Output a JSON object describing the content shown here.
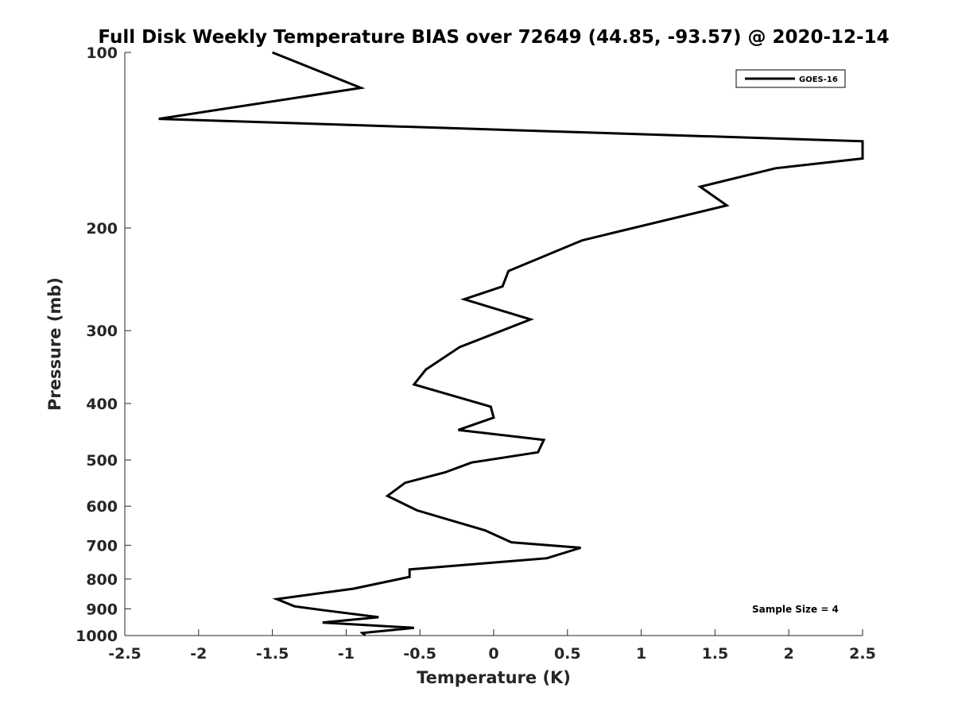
{
  "chart_data": {
    "type": "line",
    "title": "Full Disk Weekly Temperature BIAS over 72649 (44.85, -93.57) @ 2020-12-14",
    "xlabel": "Temperature (K)",
    "ylabel": "Pressure (mb)",
    "xlim": [
      -2.5,
      2.5
    ],
    "ylim": [
      100,
      1000
    ],
    "y_scale": "log",
    "y_reversed": true,
    "xticks": [
      -2.5,
      -2,
      -1.5,
      -1,
      -0.5,
      0,
      0.5,
      1,
      1.5,
      2,
      2.5
    ],
    "xtick_labels": [
      "-2.5",
      "-2",
      "-1.5",
      "-1",
      "-0.5",
      "0",
      "0.5",
      "1",
      "1.5",
      "2",
      "2.5"
    ],
    "yticks": [
      100,
      200,
      300,
      400,
      500,
      600,
      700,
      800,
      900,
      1000
    ],
    "ytick_labels": [
      "100",
      "200",
      "300",
      "400",
      "500",
      "600",
      "700",
      "800",
      "900",
      "1000"
    ],
    "grid": false,
    "legend_position": "top-right",
    "annotation": "Sample Size = 4",
    "series": [
      {
        "name": "GOES-16",
        "color": "#000000",
        "x": [
          -1.5,
          -0.9,
          -2.27,
          2.5,
          2.5,
          1.91,
          1.4,
          1.58,
          0.6,
          0.1,
          0.06,
          -0.2,
          0.25,
          -0.23,
          -0.46,
          -0.54,
          -0.02,
          0.0,
          -0.24,
          0.34,
          0.3,
          -0.15,
          -0.33,
          -0.6,
          -0.72,
          -0.52,
          -0.06,
          0.12,
          0.59,
          0.36,
          -0.57,
          -0.57,
          -0.95,
          -1.47,
          -1.35,
          -1.15,
          -0.78,
          -1.16,
          -0.54,
          -0.89,
          -0.87
        ],
        "y": [
          100,
          115,
          130,
          142,
          152,
          158,
          170,
          183,
          210,
          237,
          252,
          265,
          287,
          320,
          350,
          371,
          405,
          423,
          444,
          462,
          485,
          505,
          525,
          547,
          576,
          610,
          660,
          692,
          707,
          737,
          770,
          793,
          831,
          866,
          891,
          905,
          930,
          950,
          970,
          990,
          1000
        ]
      }
    ]
  }
}
